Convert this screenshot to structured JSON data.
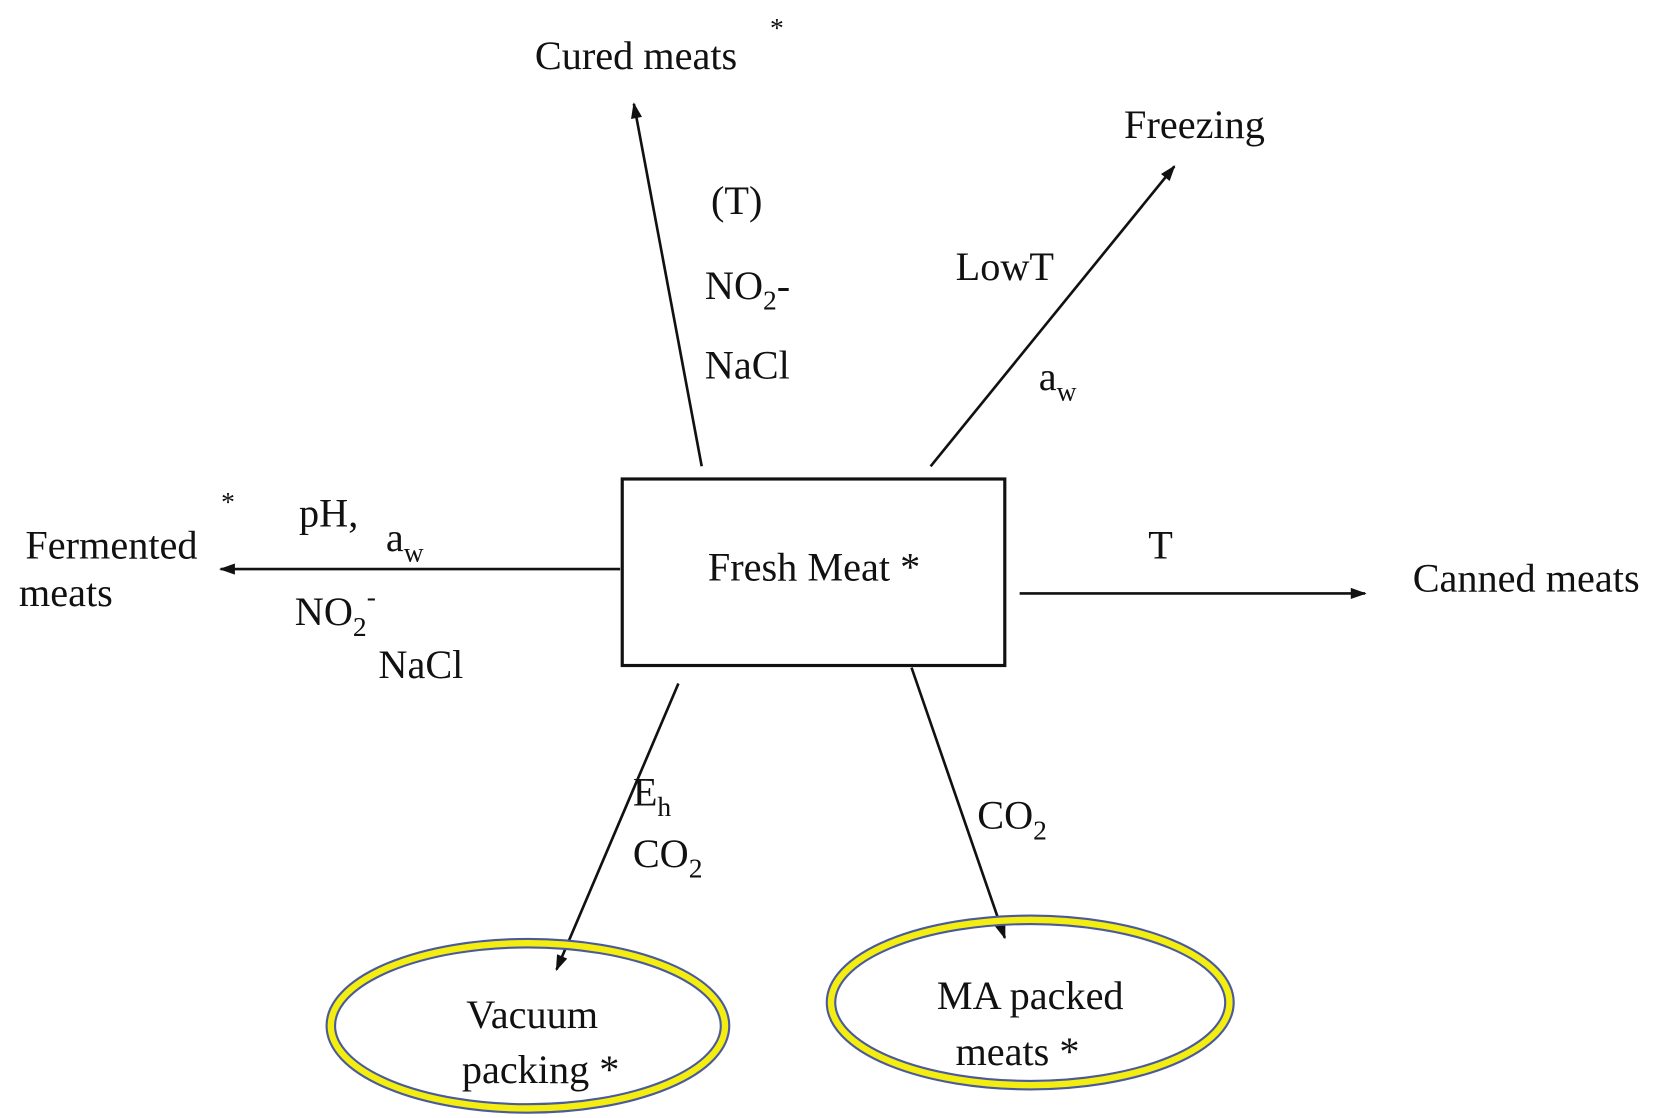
{
  "center": {
    "label": "Fresh Meat *"
  },
  "nodes": [
    {
      "id": "cured",
      "lines": [
        "Cured meats"
      ],
      "star": "*"
    },
    {
      "id": "freezing",
      "lines": [
        "Freezing"
      ]
    },
    {
      "id": "canned",
      "lines": [
        "Canned meats"
      ]
    },
    {
      "id": "fermented",
      "lines": [
        "Fermented",
        "meats"
      ],
      "star": "*"
    },
    {
      "id": "vacuum",
      "lines": [
        "Vacuum",
        "packing *"
      ]
    },
    {
      "id": "ma",
      "lines": [
        "MA packed",
        "meats *"
      ]
    }
  ],
  "edges": [
    {
      "to": "cured",
      "labels": [
        {
          "text": "(T)"
        },
        {
          "text": "NO",
          "sub": "2",
          "after": "-"
        },
        {
          "text": "NaCl"
        }
      ]
    },
    {
      "to": "freezing",
      "labels": [
        {
          "text": "LowT"
        },
        {
          "text": "a",
          "sub": "w"
        }
      ]
    },
    {
      "to": "canned",
      "labels": [
        {
          "text": "T"
        }
      ]
    },
    {
      "to": "fermented",
      "labels": [
        {
          "text": "pH,"
        },
        {
          "text": "a",
          "sub": "w"
        },
        {
          "text": "NO",
          "sub": "2",
          "sup": "-"
        },
        {
          "text": "NaCl"
        }
      ]
    },
    {
      "to": "vacuum",
      "labels": [
        {
          "text": "E",
          "sub": "h"
        },
        {
          "text": "CO",
          "sub": "2"
        }
      ]
    },
    {
      "to": "ma",
      "labels": [
        {
          "text": "CO",
          "sub": "2"
        }
      ]
    }
  ]
}
